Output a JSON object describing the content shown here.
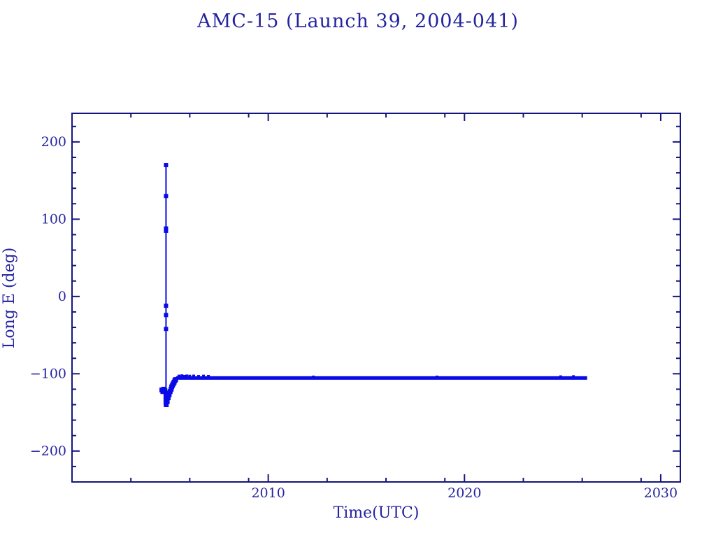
{
  "page": {
    "background": "#ffffff"
  },
  "chart_data": {
    "type": "line",
    "title": "AMC-15 (Launch 39, 2004-041)",
    "xlabel": "Time(UTC)",
    "ylabel": "Long E (deg)",
    "xlim": [
      2000,
      2031
    ],
    "ylim": [
      -240,
      237
    ],
    "grid": false,
    "legend": null,
    "colors": {
      "axis": "#15157e",
      "text": "#2424a0",
      "data": "#0a0ae8"
    },
    "x_axis": {
      "major_ticks": [
        {
          "year": 2010,
          "label": "2010"
        },
        {
          "year": 2020,
          "label": "2020"
        },
        {
          "year": 2030,
          "label": "2030"
        }
      ],
      "minor_tick_years": [
        2003,
        2006,
        2009,
        2013,
        2016,
        2019,
        2023,
        2026,
        2029
      ]
    },
    "y_axis": {
      "major_ticks": [
        {
          "value": 200,
          "label": "200"
        },
        {
          "value": 100,
          "label": "100"
        },
        {
          "value": 0,
          "label": "0"
        },
        {
          "value": -100,
          "label": "−100"
        },
        {
          "value": -200,
          "label": "−200"
        }
      ],
      "minor_tick_values": [
        220,
        180,
        160,
        140,
        120,
        80,
        60,
        40,
        20,
        -20,
        -40,
        -60,
        -80,
        -120,
        -140,
        -160,
        -180,
        -220
      ]
    },
    "series": [
      {
        "name": "longitude-history",
        "marker": "square",
        "launch_spike": {
          "year": 2004.79,
          "line_top": 170,
          "line_bottom": -140,
          "marker_values": [
            170,
            130,
            88,
            85,
            -12,
            -24,
            -42
          ]
        },
        "descent_cluster": [
          [
            2004.58,
            -121
          ],
          [
            2004.63,
            -123
          ],
          [
            2004.68,
            -120
          ],
          [
            2004.73,
            -122
          ],
          [
            2004.79,
            -125
          ],
          [
            2004.79,
            -129
          ],
          [
            2004.79,
            -133
          ],
          [
            2004.79,
            -137
          ],
          [
            2004.8,
            -140
          ],
          [
            2004.85,
            -136
          ],
          [
            2004.9,
            -131
          ],
          [
            2004.95,
            -127
          ],
          [
            2005.0,
            -123
          ],
          [
            2005.05,
            -120
          ],
          [
            2005.08,
            -117
          ],
          [
            2005.12,
            -115
          ],
          [
            2005.16,
            -113
          ],
          [
            2005.2,
            -111
          ],
          [
            2005.24,
            -109
          ],
          [
            2005.28,
            -107.5
          ]
        ],
        "settled": {
          "start_year": 2005.3,
          "end_year": 2026.25,
          "value": -105.5
        },
        "jitter_points": [
          [
            2005.45,
            -103.0
          ],
          [
            2005.6,
            -102.6
          ],
          [
            2005.72,
            -103.3
          ],
          [
            2005.85,
            -102.8
          ],
          [
            2006.0,
            -103.1
          ],
          [
            2006.2,
            -102.9
          ],
          [
            2006.45,
            -103.4
          ],
          [
            2006.7,
            -103.0
          ],
          [
            2006.95,
            -103.3
          ],
          [
            2012.3,
            -104.2
          ],
          [
            2018.6,
            -104.2
          ],
          [
            2024.9,
            -103.9
          ],
          [
            2025.55,
            -103.7
          ]
        ]
      }
    ]
  }
}
